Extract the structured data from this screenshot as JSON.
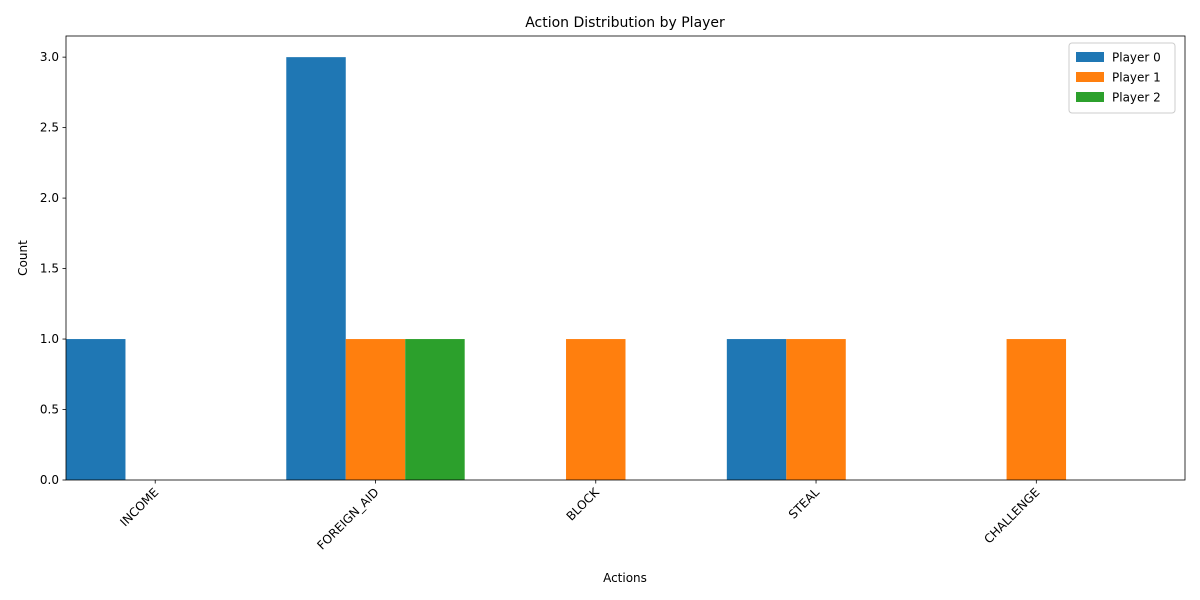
{
  "chart_data": {
    "type": "bar",
    "title": "Action Distribution by Player",
    "xlabel": "Actions",
    "ylabel": "Count",
    "categories": [
      "INCOME",
      "FOREIGN_AID",
      "BLOCK",
      "STEAL",
      "CHALLENGE"
    ],
    "series": [
      {
        "name": "Player 0",
        "color": "#1f77b4",
        "values": [
          1,
          3,
          0,
          1,
          0
        ]
      },
      {
        "name": "Player 1",
        "color": "#ff7f0e",
        "values": [
          0,
          1,
          1,
          1,
          1
        ]
      },
      {
        "name": "Player 2",
        "color": "#2ca02c",
        "values": [
          0,
          1,
          0,
          0,
          0
        ]
      }
    ],
    "ylim": [
      0,
      3.15
    ],
    "yticks": [
      "0.0",
      "0.5",
      "1.0",
      "1.5",
      "2.0",
      "2.5",
      "3.0"
    ],
    "grid": false,
    "legend_position": "top-right"
  }
}
